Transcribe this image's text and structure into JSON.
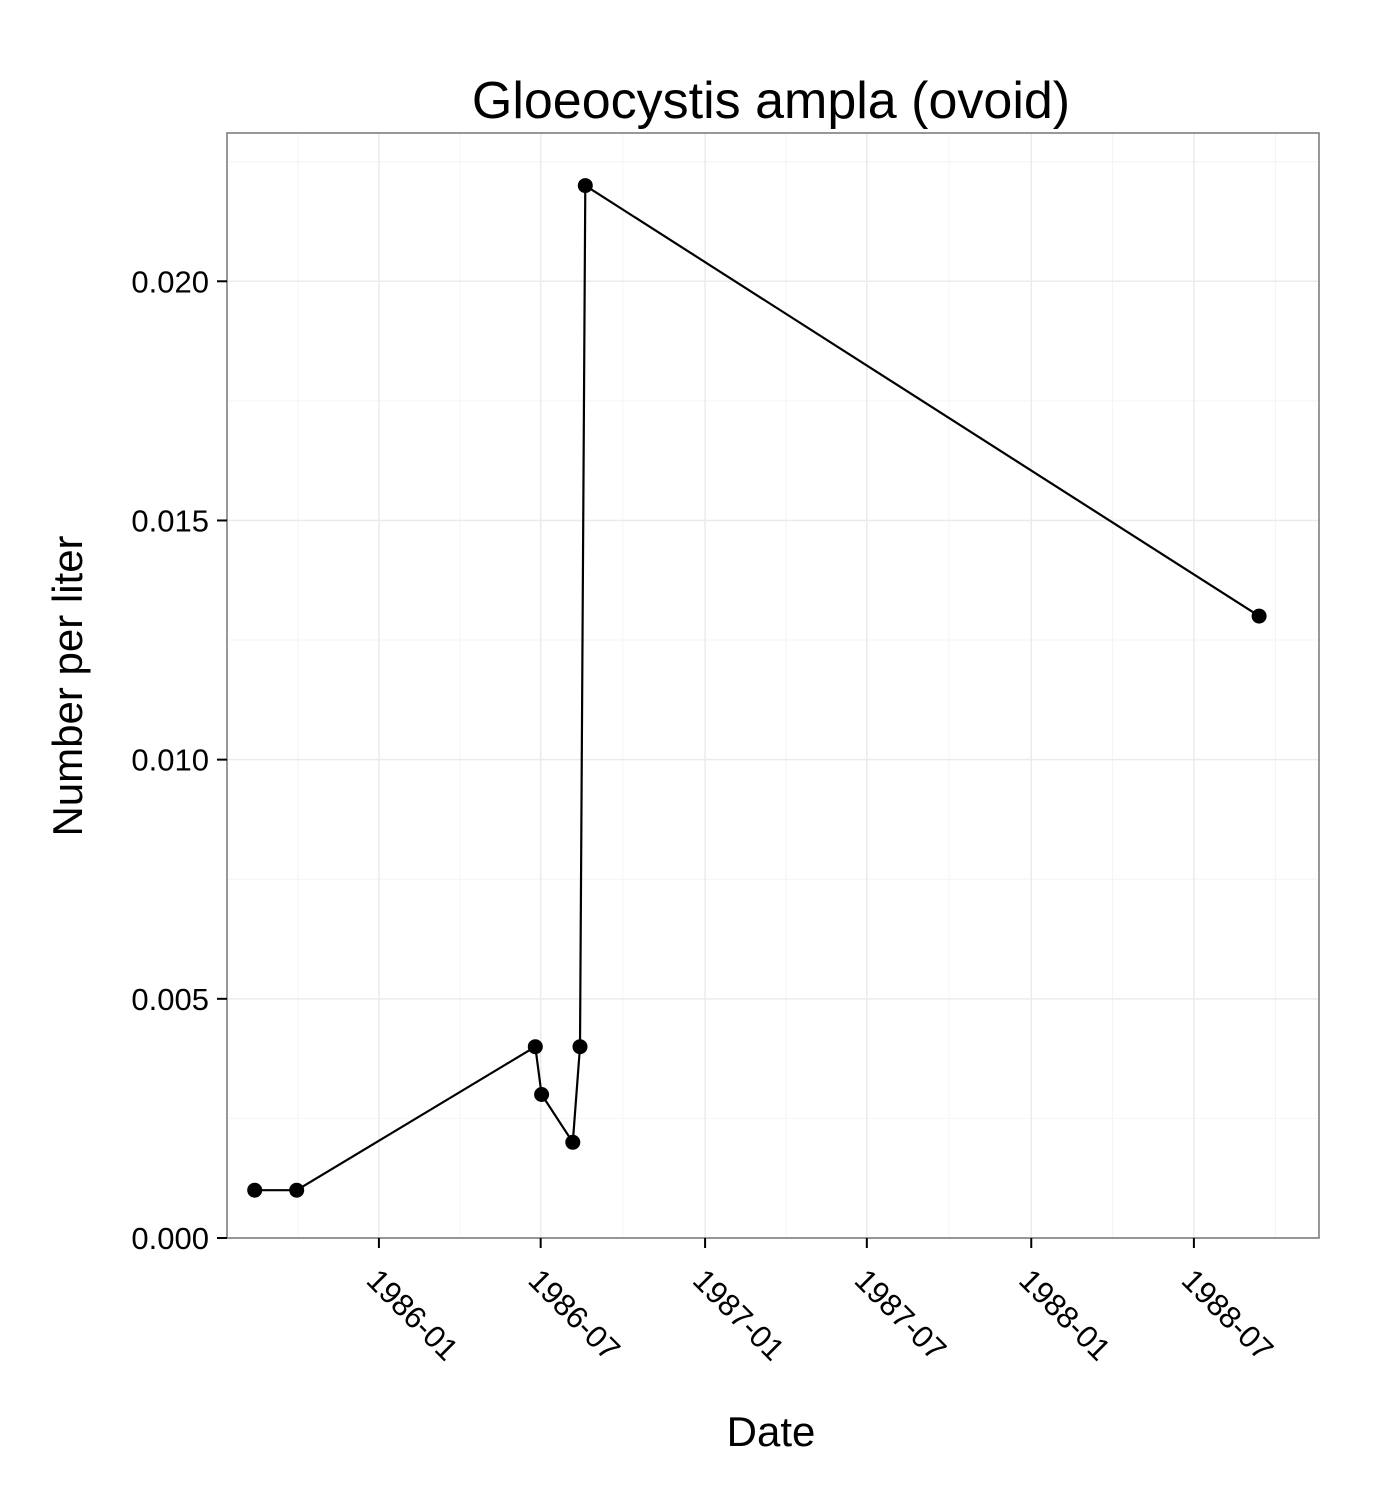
{
  "chart_data": {
    "type": "line",
    "title": "Gloeocystis ampla (ovoid)",
    "xlabel": "Date",
    "ylabel": "Number per liter",
    "x_tick_labels": [
      "1986-01",
      "1986-07",
      "1987-01",
      "1987-07",
      "1988-01",
      "1988-07"
    ],
    "y_tick_labels": [
      "0.000",
      "0.005",
      "0.010",
      "0.015",
      "0.020"
    ],
    "xlim": [
      "1985-07-15",
      "1988-11-18"
    ],
    "ylim": [
      0,
      0.0231
    ],
    "grid": true,
    "series": [
      {
        "x": [
          "1985-08-15",
          "1985-10-01",
          "1986-06-25",
          "1986-07-02",
          "1986-08-06",
          "1986-08-14",
          "1986-08-20",
          "1988-09-12"
        ],
        "y": [
          0.001,
          0.001,
          0.004,
          0.003,
          0.002,
          0.004,
          0.022,
          0.013
        ]
      }
    ],
    "colors": {
      "line": "#000000",
      "points": "#000000",
      "panel_background": "#ffffff",
      "grid": "#ebebeb",
      "border": "#7f7f7f"
    }
  }
}
